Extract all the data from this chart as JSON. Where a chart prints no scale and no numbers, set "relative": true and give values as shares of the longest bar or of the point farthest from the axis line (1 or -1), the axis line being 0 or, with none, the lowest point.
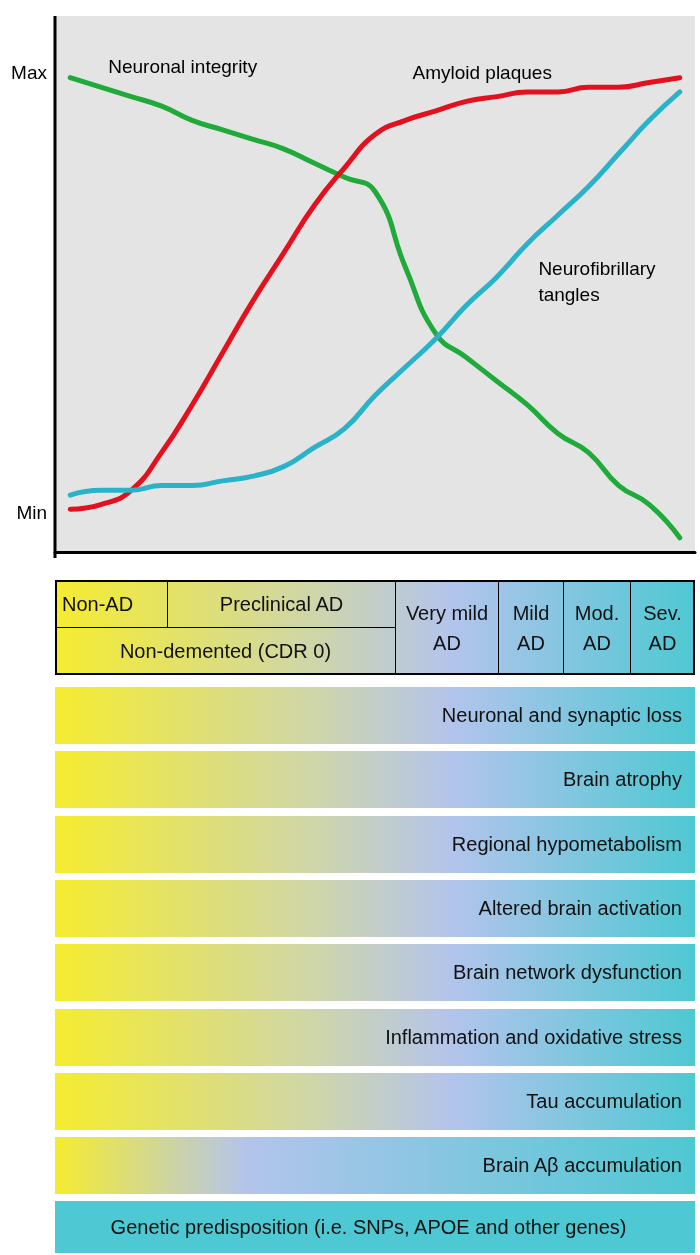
{
  "chart_data": {
    "type": "line",
    "relative": true,
    "categories": [
      null,
      null,
      null,
      null,
      null,
      null,
      null,
      null,
      null,
      null,
      null,
      null,
      null,
      null,
      null,
      null,
      null,
      null,
      null,
      null,
      null
    ],
    "series": [
      {
        "name": "Neuronal integrity",
        "color": "#1faa3a",
        "values": [
          1.0,
          0.98,
          0.96,
          0.94,
          0.91,
          0.89,
          0.87,
          0.85,
          0.82,
          0.79,
          0.76,
          0.6,
          0.46,
          0.41,
          0.36,
          0.31,
          0.25,
          0.21,
          0.14,
          0.1,
          0.03
        ]
      },
      {
        "name": "Amyloid plaques",
        "color": "#e3101e",
        "values": [
          0.09,
          0.1,
          0.13,
          0.21,
          0.31,
          0.42,
          0.53,
          0.63,
          0.73,
          0.81,
          0.88,
          0.91,
          0.93,
          0.95,
          0.96,
          0.97,
          0.97,
          0.98,
          0.98,
          0.99,
          1.0
        ]
      },
      {
        "name": "Neurofibrillary\ntangles",
        "color": "#2ab3c8",
        "values": [
          0.12,
          0.13,
          0.13,
          0.14,
          0.14,
          0.15,
          0.16,
          0.18,
          0.22,
          0.26,
          0.33,
          0.39,
          0.45,
          0.52,
          0.58,
          0.65,
          0.71,
          0.77,
          0.84,
          0.91,
          0.97
        ]
      }
    ],
    "grid": false,
    "legend": false,
    "marker": "none",
    "line_style": "solid",
    "annotations": [
      "Max",
      "Min",
      "Non-AD",
      "Preclinical AD",
      "Non-demented (CDR 0)",
      "Very mild\nAD",
      "Mild\nAD",
      "Mod.\nAD",
      "Sev.\nAD",
      "Neuronal and synaptic loss",
      "Brain atrophy",
      "Regional hypometabolism",
      "Altered brain activation",
      "Brain network dysfunction",
      "Inflammation and oxidative stress",
      "Tau accumulation",
      "Brain Aβ accumulation",
      "Genetic predisposition (i.e. SNPs, APOE and other genes)"
    ]
  }
}
